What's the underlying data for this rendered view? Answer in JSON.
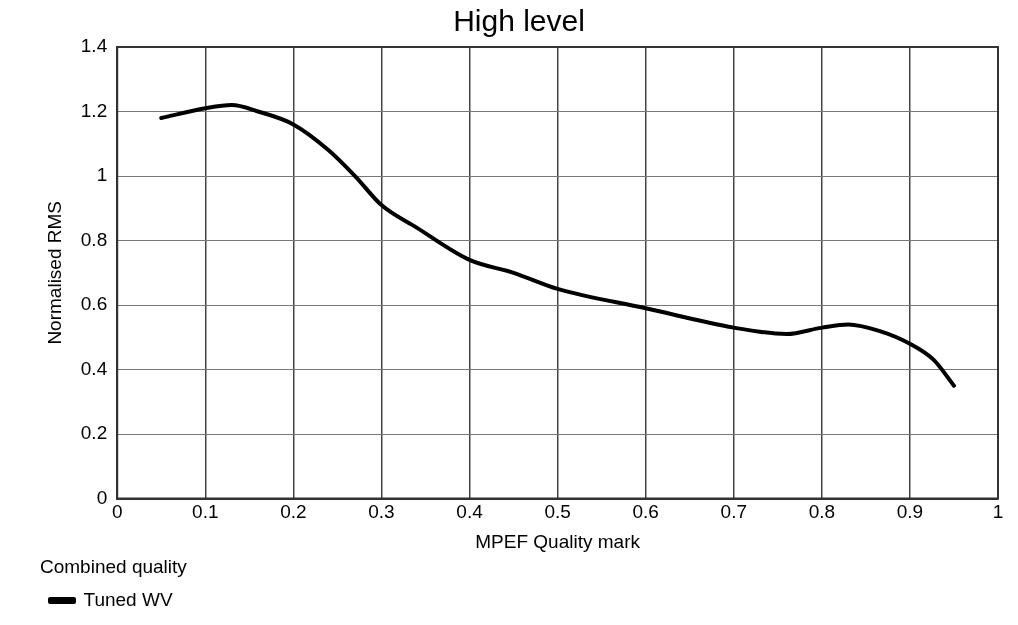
{
  "chart_data": {
    "type": "line",
    "title": "High level",
    "xlabel": "MPEF Quality mark",
    "ylabel": "Normalised RMS",
    "legend_title": "Combined quality",
    "xlim": [
      0,
      1
    ],
    "xticks": [
      0,
      0.1,
      0.2,
      0.3,
      0.4,
      0.5,
      0.6,
      0.7,
      0.8,
      0.9,
      1
    ],
    "ylim": [
      0,
      1.4
    ],
    "yticks": [
      0,
      0.2,
      0.4,
      0.6,
      0.8,
      1,
      1.2,
      1.4
    ],
    "grid": true,
    "legend": "bottom left",
    "marker": "none",
    "line_style": "solid",
    "series": [
      {
        "name": "Tuned WV",
        "color": "#000000",
        "x": [
          0.05,
          0.1,
          0.13,
          0.16,
          0.2,
          0.24,
          0.27,
          0.3,
          0.34,
          0.4,
          0.45,
          0.5,
          0.6,
          0.7,
          0.76,
          0.8,
          0.83,
          0.865,
          0.9,
          0.927,
          0.95
        ],
        "values": [
          1.18,
          1.21,
          1.22,
          1.2,
          1.16,
          1.08,
          1.0,
          0.91,
          0.84,
          0.74,
          0.7,
          0.65,
          0.59,
          0.53,
          0.51,
          0.53,
          0.54,
          0.52,
          0.48,
          0.43,
          0.35
        ]
      }
    ]
  }
}
